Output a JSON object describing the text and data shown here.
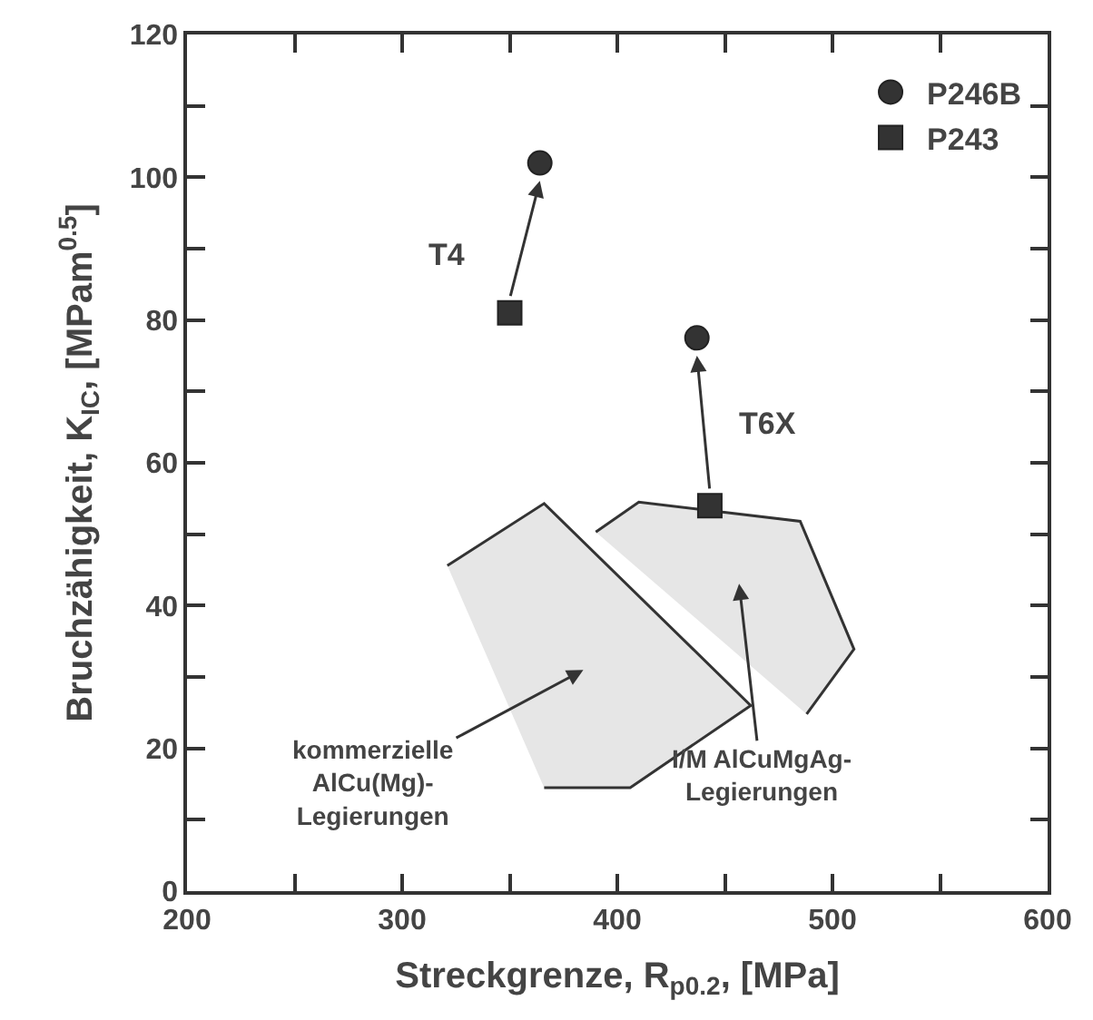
{
  "chart_data": {
    "type": "scatter",
    "xlabel": "Streckgrenze, R$_{p0.2}$, [MPa]",
    "ylabel": "Bruchzähigkeit, K$_{IC}$, [MPam$^{0.5}$]",
    "xlim": [
      200,
      600
    ],
    "xticks": [
      200,
      {
        "value": 250,
        "label": null
      },
      300,
      {
        "value": 350,
        "label": null
      },
      400,
      {
        "value": 450,
        "label": null
      },
      500,
      {
        "value": 550,
        "label": null
      },
      600
    ],
    "ylim": [
      0,
      120
    ],
    "yticks": [
      0,
      {
        "value": 10,
        "label": null
      },
      20,
      {
        "value": 30,
        "label": null
      },
      40,
      {
        "value": 50,
        "label": null
      },
      60,
      {
        "value": 70,
        "label": null
      },
      80,
      {
        "value": 90,
        "label": null
      },
      100,
      {
        "value": 110,
        "label": null
      },
      120
    ],
    "legend": "top right",
    "series": [
      {
        "type": "area",
        "color": "#e6e6e6",
        "x": [
          321,
          366,
          462,
          406,
          366
        ],
        "values": [
          45.6,
          54.3,
          26,
          14.5,
          14.5
        ]
      },
      {
        "type": "area",
        "color": "#e6e6e6",
        "x": [
          390,
          410,
          485,
          510,
          488
        ],
        "values": [
          50.3,
          54.5,
          51.8,
          33.9,
          24.8
        ]
      },
      {
        "name": "P246B",
        "marker": "circle",
        "color": "#333333",
        "x": [
          364,
          437
        ],
        "values": [
          102,
          77.5
        ]
      },
      {
        "name": "P243",
        "marker": "square",
        "color": "#333333",
        "x": [
          350,
          443
        ],
        "values": [
          81,
          54
        ]
      }
    ],
    "annotations": [
      {
        "text": "T4",
        "x": 350,
        "y": 81
      },
      {
        "text": "T6X",
        "x": 443,
        "y": 54
      },
      "kommerzielle\nAlCu(Mg)-\nLegierungen",
      "I/M AlCuMgAg-\nLegierungen"
    ]
  }
}
